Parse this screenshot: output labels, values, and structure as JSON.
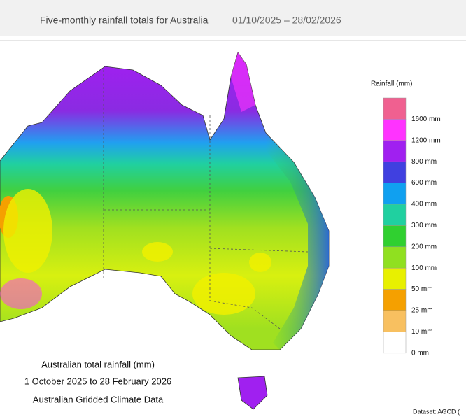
{
  "header": {
    "title": "Five-monthly rainfall totals for Australia",
    "date_range": "01/10/2025 – 28/02/2026"
  },
  "legend": {
    "title": "Rainfall (mm)",
    "labels": [
      "1600 mm",
      "1200 mm",
      "800 mm",
      "600 mm",
      "400 mm",
      "300 mm",
      "200 mm",
      "100 mm",
      "50 mm",
      "25 mm",
      "10 mm",
      "0 mm"
    ]
  },
  "caption": [
    "Australian total rainfall (mm)",
    "1 October 2025 to 28 February 2026",
    "Australian Gridded Climate Data"
  ],
  "dataset": "Dataset: AGCD ("
}
